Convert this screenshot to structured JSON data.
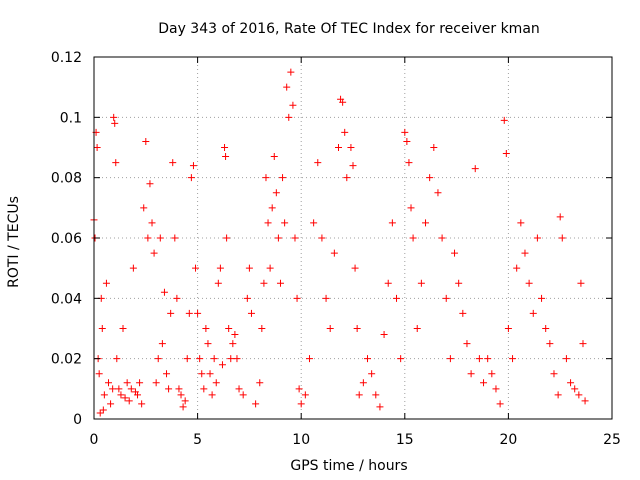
{
  "chart_data": {
    "type": "scatter",
    "title": "Day 343 of 2016, Rate Of TEC Index for receiver kman",
    "xlabel": "GPS time / hours",
    "ylabel": "ROTI / TECUs",
    "xlim": [
      0,
      25
    ],
    "ylim": [
      0,
      0.12
    ],
    "x_ticks": [
      0,
      5,
      10,
      15,
      20,
      25
    ],
    "x_tick_labels": [
      "0",
      "5",
      "10",
      "15",
      "20",
      "25"
    ],
    "y_ticks": [
      0,
      0.02,
      0.04,
      0.06,
      0.08,
      0.1,
      0.12
    ],
    "y_tick_labels": [
      "0",
      "0.02",
      "0.04",
      "0.06",
      "0.08",
      "0.1",
      "0.12"
    ],
    "grid": true,
    "marker": "+",
    "color": "#ff0000",
    "series": [
      {
        "name": "ROTI",
        "points": [
          [
            0.0,
            0.066
          ],
          [
            0.05,
            0.06
          ],
          [
            0.1,
            0.095
          ],
          [
            0.15,
            0.09
          ],
          [
            0.2,
            0.02
          ],
          [
            0.25,
            0.015
          ],
          [
            0.3,
            0.002
          ],
          [
            0.35,
            0.04
          ],
          [
            0.4,
            0.03
          ],
          [
            0.45,
            0.003
          ],
          [
            0.5,
            0.008
          ],
          [
            0.6,
            0.045
          ],
          [
            0.7,
            0.012
          ],
          [
            0.8,
            0.005
          ],
          [
            0.9,
            0.01
          ],
          [
            0.95,
            0.1
          ],
          [
            1.0,
            0.098
          ],
          [
            1.05,
            0.085
          ],
          [
            1.1,
            0.02
          ],
          [
            1.2,
            0.01
          ],
          [
            1.3,
            0.008
          ],
          [
            1.4,
            0.03
          ],
          [
            1.5,
            0.007
          ],
          [
            1.6,
            0.012
          ],
          [
            1.7,
            0.006
          ],
          [
            1.8,
            0.01
          ],
          [
            1.9,
            0.05
          ],
          [
            2.0,
            0.009
          ],
          [
            2.1,
            0.008
          ],
          [
            2.2,
            0.012
          ],
          [
            2.3,
            0.005
          ],
          [
            2.4,
            0.07
          ],
          [
            2.5,
            0.092
          ],
          [
            2.6,
            0.06
          ],
          [
            2.7,
            0.078
          ],
          [
            2.8,
            0.065
          ],
          [
            2.9,
            0.055
          ],
          [
            3.0,
            0.012
          ],
          [
            3.1,
            0.02
          ],
          [
            3.2,
            0.06
          ],
          [
            3.3,
            0.025
          ],
          [
            3.4,
            0.042
          ],
          [
            3.5,
            0.015
          ],
          [
            3.6,
            0.01
          ],
          [
            3.7,
            0.035
          ],
          [
            3.8,
            0.085
          ],
          [
            3.9,
            0.06
          ],
          [
            4.0,
            0.04
          ],
          [
            4.1,
            0.01
          ],
          [
            4.2,
            0.008
          ],
          [
            4.3,
            0.004
          ],
          [
            4.4,
            0.006
          ],
          [
            4.5,
            0.02
          ],
          [
            4.6,
            0.035
          ],
          [
            4.7,
            0.08
          ],
          [
            4.8,
            0.084
          ],
          [
            4.9,
            0.05
          ],
          [
            5.0,
            0.035
          ],
          [
            5.1,
            0.02
          ],
          [
            5.2,
            0.015
          ],
          [
            5.3,
            0.01
          ],
          [
            5.4,
            0.03
          ],
          [
            5.5,
            0.025
          ],
          [
            5.6,
            0.015
          ],
          [
            5.7,
            0.008
          ],
          [
            5.8,
            0.02
          ],
          [
            5.9,
            0.012
          ],
          [
            6.0,
            0.045
          ],
          [
            6.1,
            0.05
          ],
          [
            6.2,
            0.018
          ],
          [
            6.3,
            0.09
          ],
          [
            6.35,
            0.087
          ],
          [
            6.4,
            0.06
          ],
          [
            6.5,
            0.03
          ],
          [
            6.6,
            0.02
          ],
          [
            6.7,
            0.025
          ],
          [
            6.8,
            0.028
          ],
          [
            6.9,
            0.02
          ],
          [
            7.0,
            0.01
          ],
          [
            7.2,
            0.008
          ],
          [
            7.4,
            0.04
          ],
          [
            7.5,
            0.05
          ],
          [
            7.6,
            0.035
          ],
          [
            7.8,
            0.005
          ],
          [
            8.0,
            0.012
          ],
          [
            8.1,
            0.03
          ],
          [
            8.2,
            0.045
          ],
          [
            8.3,
            0.08
          ],
          [
            8.4,
            0.065
          ],
          [
            8.5,
            0.05
          ],
          [
            8.6,
            0.07
          ],
          [
            8.7,
            0.087
          ],
          [
            8.8,
            0.075
          ],
          [
            8.9,
            0.06
          ],
          [
            9.0,
            0.045
          ],
          [
            9.1,
            0.08
          ],
          [
            9.2,
            0.065
          ],
          [
            9.3,
            0.11
          ],
          [
            9.4,
            0.1
          ],
          [
            9.5,
            0.115
          ],
          [
            9.6,
            0.104
          ],
          [
            9.7,
            0.06
          ],
          [
            9.8,
            0.04
          ],
          [
            9.9,
            0.01
          ],
          [
            10.0,
            0.005
          ],
          [
            10.2,
            0.008
          ],
          [
            10.4,
            0.02
          ],
          [
            10.6,
            0.065
          ],
          [
            10.8,
            0.085
          ],
          [
            11.0,
            0.06
          ],
          [
            11.2,
            0.04
          ],
          [
            11.4,
            0.03
          ],
          [
            11.6,
            0.055
          ],
          [
            11.8,
            0.09
          ],
          [
            11.9,
            0.106
          ],
          [
            12.0,
            0.105
          ],
          [
            12.1,
            0.095
          ],
          [
            12.2,
            0.08
          ],
          [
            12.4,
            0.09
          ],
          [
            12.5,
            0.084
          ],
          [
            12.6,
            0.05
          ],
          [
            12.7,
            0.03
          ],
          [
            12.8,
            0.008
          ],
          [
            13.0,
            0.012
          ],
          [
            13.2,
            0.02
          ],
          [
            13.4,
            0.015
          ],
          [
            13.6,
            0.008
          ],
          [
            13.8,
            0.004
          ],
          [
            14.0,
            0.028
          ],
          [
            14.2,
            0.045
          ],
          [
            14.4,
            0.065
          ],
          [
            14.6,
            0.04
          ],
          [
            14.8,
            0.02
          ],
          [
            15.0,
            0.095
          ],
          [
            15.1,
            0.092
          ],
          [
            15.2,
            0.085
          ],
          [
            15.3,
            0.07
          ],
          [
            15.4,
            0.06
          ],
          [
            15.6,
            0.03
          ],
          [
            15.8,
            0.045
          ],
          [
            16.0,
            0.065
          ],
          [
            16.2,
            0.08
          ],
          [
            16.4,
            0.09
          ],
          [
            16.6,
            0.075
          ],
          [
            16.8,
            0.06
          ],
          [
            17.0,
            0.04
          ],
          [
            17.2,
            0.02
          ],
          [
            17.4,
            0.055
          ],
          [
            17.6,
            0.045
          ],
          [
            17.8,
            0.035
          ],
          [
            18.0,
            0.025
          ],
          [
            18.2,
            0.015
          ],
          [
            18.4,
            0.083
          ],
          [
            18.6,
            0.02
          ],
          [
            18.8,
            0.012
          ],
          [
            19.0,
            0.02
          ],
          [
            19.2,
            0.015
          ],
          [
            19.4,
            0.01
          ],
          [
            19.6,
            0.005
          ],
          [
            19.8,
            0.099
          ],
          [
            19.9,
            0.088
          ],
          [
            20.0,
            0.03
          ],
          [
            20.2,
            0.02
          ],
          [
            20.4,
            0.05
          ],
          [
            20.6,
            0.065
          ],
          [
            20.8,
            0.055
          ],
          [
            21.0,
            0.045
          ],
          [
            21.2,
            0.035
          ],
          [
            21.4,
            0.06
          ],
          [
            21.6,
            0.04
          ],
          [
            21.8,
            0.03
          ],
          [
            22.0,
            0.025
          ],
          [
            22.2,
            0.015
          ],
          [
            22.4,
            0.008
          ],
          [
            22.5,
            0.067
          ],
          [
            22.6,
            0.06
          ],
          [
            22.8,
            0.02
          ],
          [
            23.0,
            0.012
          ],
          [
            23.2,
            0.01
          ],
          [
            23.4,
            0.008
          ],
          [
            23.5,
            0.045
          ],
          [
            23.6,
            0.025
          ],
          [
            23.7,
            0.006
          ]
        ]
      }
    ]
  }
}
